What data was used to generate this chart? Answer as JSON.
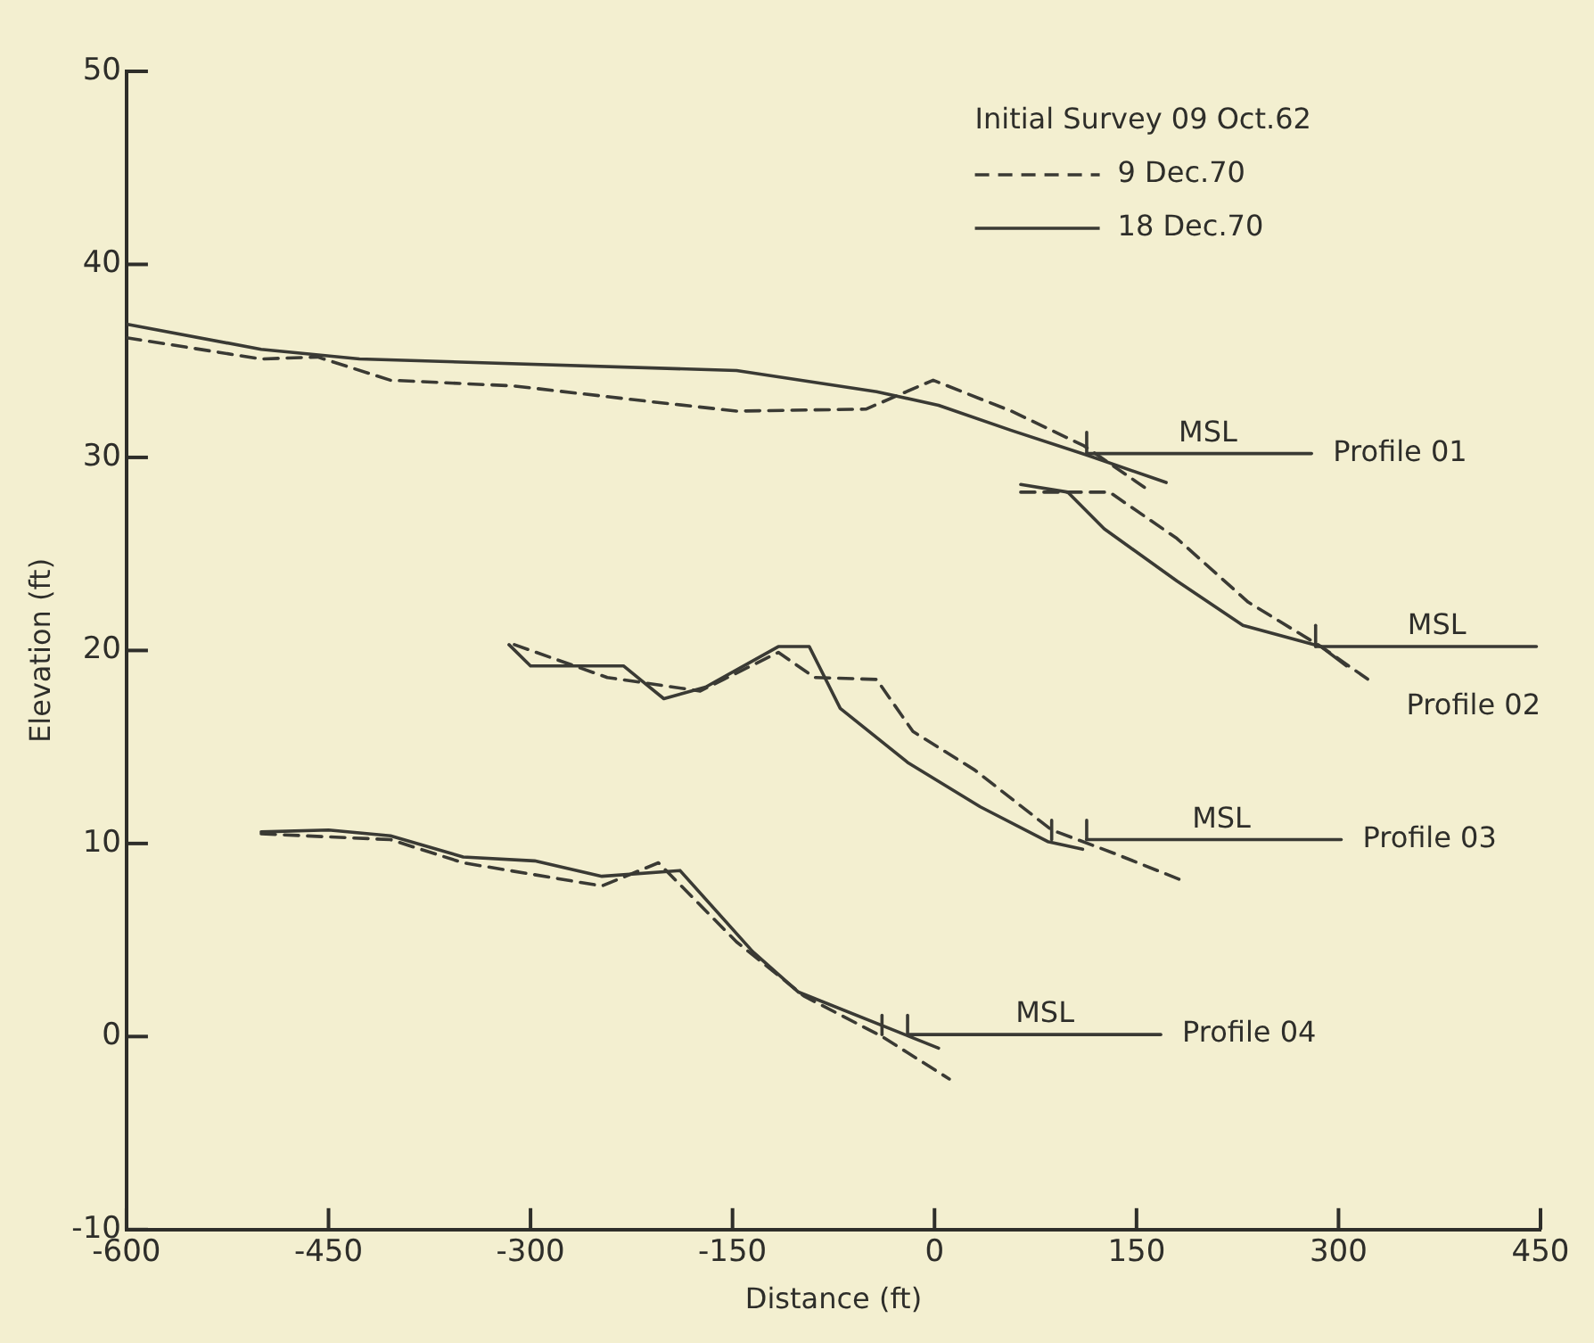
{
  "chart_data": {
    "type": "line",
    "xlabel": "Distance (ft)",
    "ylabel": "Elevation (ft)",
    "legend_title": "Initial Survey 09 Oct.62",
    "legend": "top right",
    "grid": false,
    "marker": "none",
    "xlim": [
      -600,
      450
    ],
    "xticks": [
      -600,
      -450,
      -300,
      -150,
      0,
      150,
      300,
      450
    ],
    "ylim": [
      -10,
      50
    ],
    "yticks": [
      -10,
      0,
      10,
      20,
      30,
      40,
      50
    ],
    "series": [
      {
        "name": "9 Dec.70",
        "color": "#3a3a34",
        "line_style": "dashed",
        "x": [
          -600,
          -500,
          -458,
          -404,
          -312,
          -212,
          -147,
          -51,
          -1,
          57,
          111,
          157
        ],
        "values": [
          36.2,
          35.1,
          35.2,
          34.0,
          33.7,
          32.9,
          32.4,
          32.5,
          34.0,
          32.4,
          30.6,
          28.4
        ]
      },
      {
        "name": "18 Dec.70",
        "color": "#3a3a34",
        "line_style": "solid",
        "x": [
          -600,
          -500,
          -427,
          -147,
          -43,
          3,
          57,
          114,
          172
        ],
        "values": [
          36.9,
          35.6,
          35.1,
          34.5,
          33.4,
          32.7,
          31.4,
          30.1,
          28.7
        ]
      },
      {
        "color": "#3a3a34",
        "line_style": "dashed",
        "x": [
          64,
          130,
          180,
          233,
          287,
          322
        ],
        "values": [
          28.2,
          28.2,
          25.8,
          22.5,
          20.2,
          18.5
        ]
      },
      {
        "color": "#3a3a34",
        "line_style": "solid",
        "x": [
          64,
          99,
          126,
          180,
          229,
          287,
          306
        ],
        "values": [
          28.6,
          28.2,
          26.3,
          23.6,
          21.3,
          20.2,
          19.2
        ]
      },
      {
        "color": "#3a3a34",
        "line_style": "dashed",
        "x": [
          -312,
          -243,
          -174,
          -116,
          -89,
          -43,
          -16,
          30,
          87,
          133,
          187
        ],
        "values": [
          20.3,
          18.6,
          17.9,
          19.9,
          18.6,
          18.5,
          15.8,
          13.8,
          10.7,
          9.5,
          8.0
        ]
      },
      {
        "color": "#3a3a34",
        "line_style": "solid",
        "x": [
          -316,
          -300,
          -231,
          -201,
          -170,
          -116,
          -93,
          -70,
          -20,
          34,
          84,
          110
        ],
        "values": [
          20.3,
          19.2,
          19.2,
          17.5,
          18.1,
          20.2,
          20.2,
          17.0,
          14.2,
          11.9,
          10.1,
          9.7
        ]
      },
      {
        "color": "#3a3a34",
        "line_style": "dashed",
        "x": [
          -500,
          -404,
          -350,
          -247,
          -205,
          -147,
          -97,
          -39,
          11
        ],
        "values": [
          10.5,
          10.2,
          9.0,
          7.8,
          9.0,
          4.9,
          2.1,
          0.0,
          -2.2
        ]
      },
      {
        "color": "#3a3a34",
        "line_style": "solid",
        "x": [
          -500,
          -450,
          -404,
          -350,
          -297,
          -247,
          -189,
          -135,
          -101,
          3
        ],
        "values": [
          10.6,
          10.7,
          10.4,
          9.3,
          9.1,
          8.3,
          8.6,
          4.4,
          2.3,
          -0.6
        ]
      },
      {
        "name": "Profile 01",
        "color": "#3a3a34",
        "line_style": "solid",
        "x": [
          113,
          280
        ],
        "values": [
          30.2,
          30.2
        ]
      },
      {
        "name": "Profile 02",
        "color": "#3a3a34",
        "line_style": "solid",
        "x": [
          283,
          447
        ],
        "values": [
          20.2,
          20.2
        ]
      },
      {
        "name": "Profile 03",
        "color": "#3a3a34",
        "line_style": "solid",
        "x": [
          113,
          302
        ],
        "values": [
          10.2,
          10.2
        ]
      },
      {
        "name": "Profile 04",
        "color": "#3a3a34",
        "line_style": "solid",
        "x": [
          -20,
          168
        ],
        "values": [
          0.1,
          0.1
        ]
      },
      {
        "color": "#3a3a34",
        "line_style": "solid",
        "x": [
          113,
          113
        ],
        "values": [
          30.2,
          31.3
        ]
      },
      {
        "color": "#3a3a34",
        "line_style": "solid",
        "x": [
          283,
          283
        ],
        "values": [
          20.2,
          21.3
        ]
      },
      {
        "color": "#3a3a34",
        "line_style": "solid",
        "x": [
          87,
          87
        ],
        "values": [
          10.2,
          11.2
        ]
      },
      {
        "color": "#3a3a34",
        "line_style": "solid",
        "x": [
          113,
          113
        ],
        "values": [
          10.2,
          11.2
        ]
      },
      {
        "color": "#3a3a34",
        "line_style": "solid",
        "x": [
          -39,
          -39
        ],
        "values": [
          0.1,
          1.1
        ]
      },
      {
        "color": "#3a3a34",
        "line_style": "solid",
        "x": [
          -20,
          -20
        ],
        "values": [
          0.1,
          1.1
        ]
      }
    ],
    "annotations": [
      {
        "text": "MSL",
        "x": 203,
        "y": 30.2
      },
      {
        "text": "MSL",
        "x": 373,
        "y": 20.2
      },
      {
        "text": "MSL",
        "x": 213,
        "y": 10.2
      },
      {
        "text": "MSL",
        "x": 82,
        "y": 0.1
      }
    ]
  }
}
